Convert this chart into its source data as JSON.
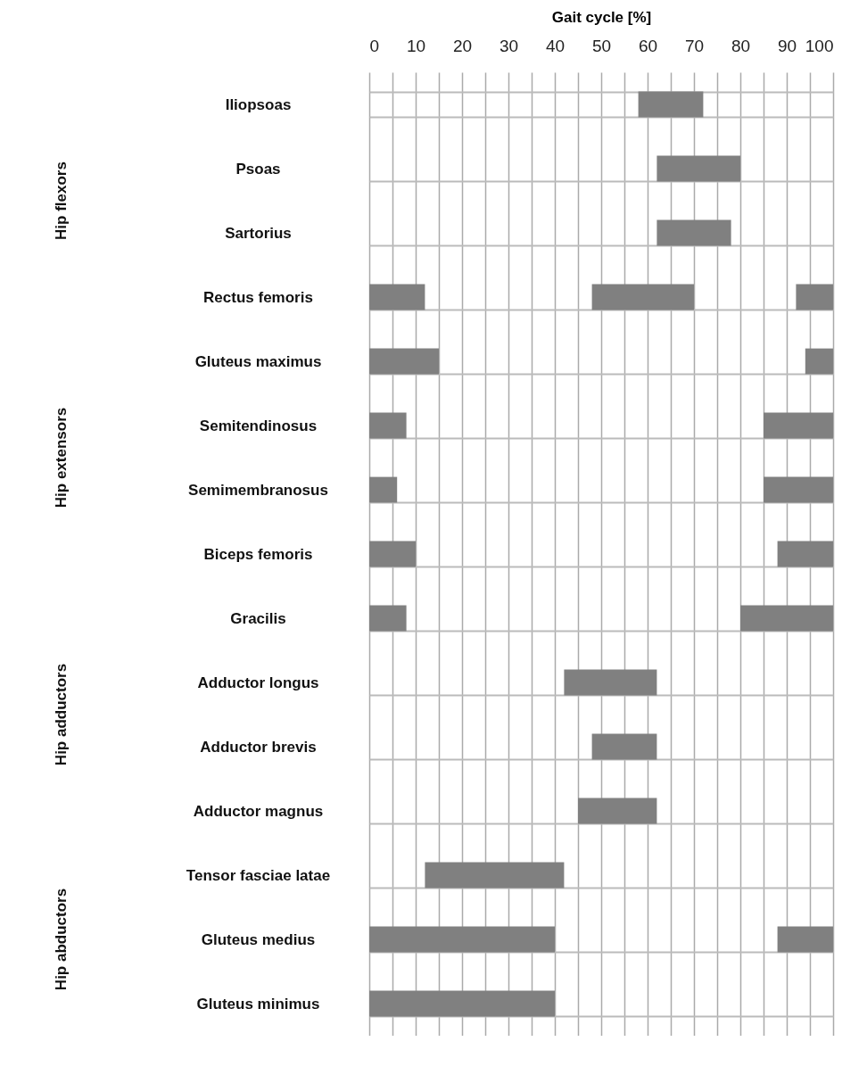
{
  "chart_data": {
    "type": "bar",
    "orientation": "horizontal",
    "xlabel": "Gait cycle [%]",
    "categories": [
      "Iliopsoas",
      "Psoas",
      "Sartorius",
      "Rectus femoris",
      "Gluteus maximus",
      "Semitendinosus",
      "Semimembranosus",
      "Biceps femoris",
      "Gracilis",
      "Adductor longus",
      "Adductor brevis",
      "Adductor magnus",
      "Tensor fasciae latae",
      "Gluteus medius",
      "Gluteus minimus"
    ],
    "series": [
      {
        "color": "#808080",
        "base": [
          null,
          null,
          null,
          0,
          0,
          0,
          0,
          0,
          0,
          null,
          null,
          null,
          12,
          0,
          0
        ],
        "values": [
          null,
          null,
          null,
          12,
          15,
          8,
          6,
          10,
          8,
          null,
          null,
          null,
          30,
          40,
          40
        ]
      },
      {
        "color": "#808080",
        "base": [
          58,
          62,
          62,
          48,
          null,
          null,
          null,
          null,
          null,
          42,
          48,
          45,
          null,
          null,
          null
        ],
        "values": [
          14,
          18,
          16,
          22,
          null,
          null,
          null,
          null,
          null,
          20,
          14,
          17,
          null,
          null,
          null
        ]
      },
      {
        "color": "#808080",
        "base": [
          null,
          null,
          null,
          92,
          94,
          85,
          85,
          88,
          80,
          null,
          null,
          null,
          null,
          88,
          null
        ],
        "values": [
          null,
          null,
          null,
          8,
          6,
          15,
          15,
          12,
          20,
          null,
          null,
          null,
          null,
          12,
          null
        ]
      }
    ],
    "annotations": [
      "Hip flexors",
      "Hip extensors",
      "Hip adductors",
      "Hip abductors"
    ],
    "xlim": [
      0,
      100
    ],
    "xticks": [
      0,
      {
        "value": 5,
        "label": null
      },
      10,
      {
        "value": 15,
        "label": null
      },
      20,
      {
        "value": 25,
        "label": null
      },
      30,
      {
        "value": 35,
        "label": null
      },
      40,
      {
        "value": 45,
        "label": null
      },
      50,
      {
        "value": 55,
        "label": null
      },
      60,
      {
        "value": 65,
        "label": null
      },
      70,
      {
        "value": 75,
        "label": null
      },
      80,
      {
        "value": 85,
        "label": null
      },
      90,
      {
        "value": 95,
        "label": null
      },
      100
    ],
    "grid": true
  }
}
